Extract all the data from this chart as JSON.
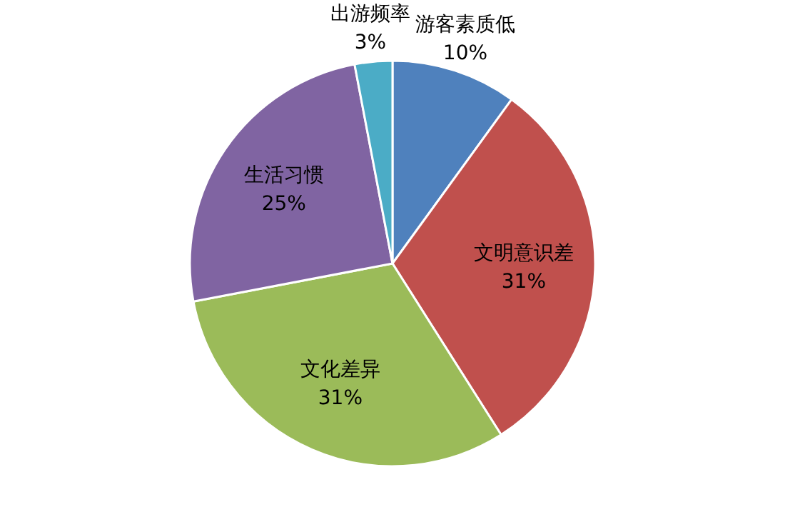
{
  "chart_data": {
    "type": "pie",
    "categories": [
      "游客素质低",
      "文明意识差",
      "文化差异",
      "生活习惯",
      "出游频率"
    ],
    "values": [
      10,
      31,
      31,
      25,
      3
    ],
    "colors": [
      "#4f81bd",
      "#c0504d",
      "#9bbb59",
      "#8064a2",
      "#4bacc6"
    ],
    "value_labels": [
      "10%",
      "31%",
      "31%",
      "25%",
      "3%"
    ],
    "legend": false
  }
}
